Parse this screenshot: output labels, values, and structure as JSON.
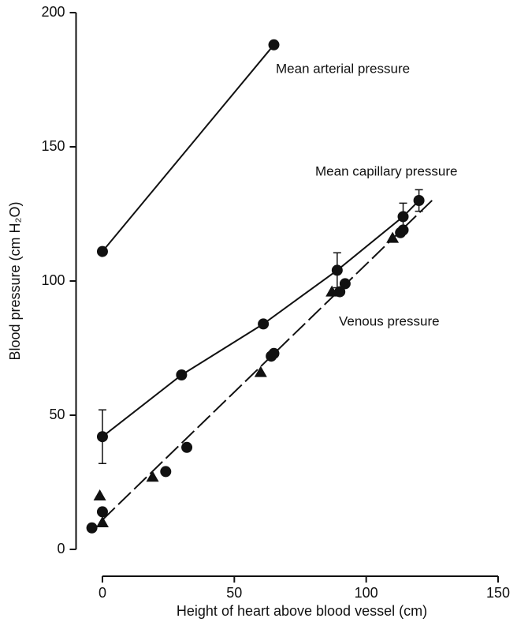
{
  "chart_data": {
    "type": "scatter",
    "xlabel": "Height of heart above blood vessel (cm)",
    "ylabel": "Blood pressure (cm H₂O)",
    "xlim": [
      -10,
      150
    ],
    "xticks": [
      0,
      50,
      100,
      150
    ],
    "ylim": [
      0,
      200
    ],
    "yticks": [
      0,
      50,
      100,
      150,
      200
    ],
    "annotations": [
      "Mean arterial pressure",
      "Mean capillary pressure",
      "Venous pressure"
    ],
    "color": "#111111",
    "series": [
      {
        "marker": "circle",
        "line": "solid",
        "x": [
          0,
          65
        ],
        "y": [
          111,
          188
        ]
      },
      {
        "marker": "circle",
        "line": "solid",
        "x": [
          0,
          30,
          61,
          89,
          114,
          120
        ],
        "y": [
          42,
          65,
          84,
          104,
          124,
          130
        ],
        "err": [
          10,
          null,
          null,
          6.5,
          5,
          4
        ]
      },
      {
        "marker": "circle",
        "line": "none",
        "x": [
          -4,
          0,
          24,
          32,
          64,
          65,
          90,
          92,
          113,
          114
        ],
        "y": [
          8,
          14,
          29,
          38,
          72,
          73,
          96,
          99,
          118,
          119
        ]
      },
      {
        "marker": "triangle",
        "line": "none",
        "x": [
          -1,
          0,
          19,
          60,
          87,
          110
        ],
        "y": [
          20,
          10,
          27,
          66,
          96,
          116
        ]
      },
      {
        "marker": "none",
        "line": "dashed",
        "x": [
          0,
          126
        ],
        "y": [
          11,
          131
        ]
      }
    ]
  }
}
